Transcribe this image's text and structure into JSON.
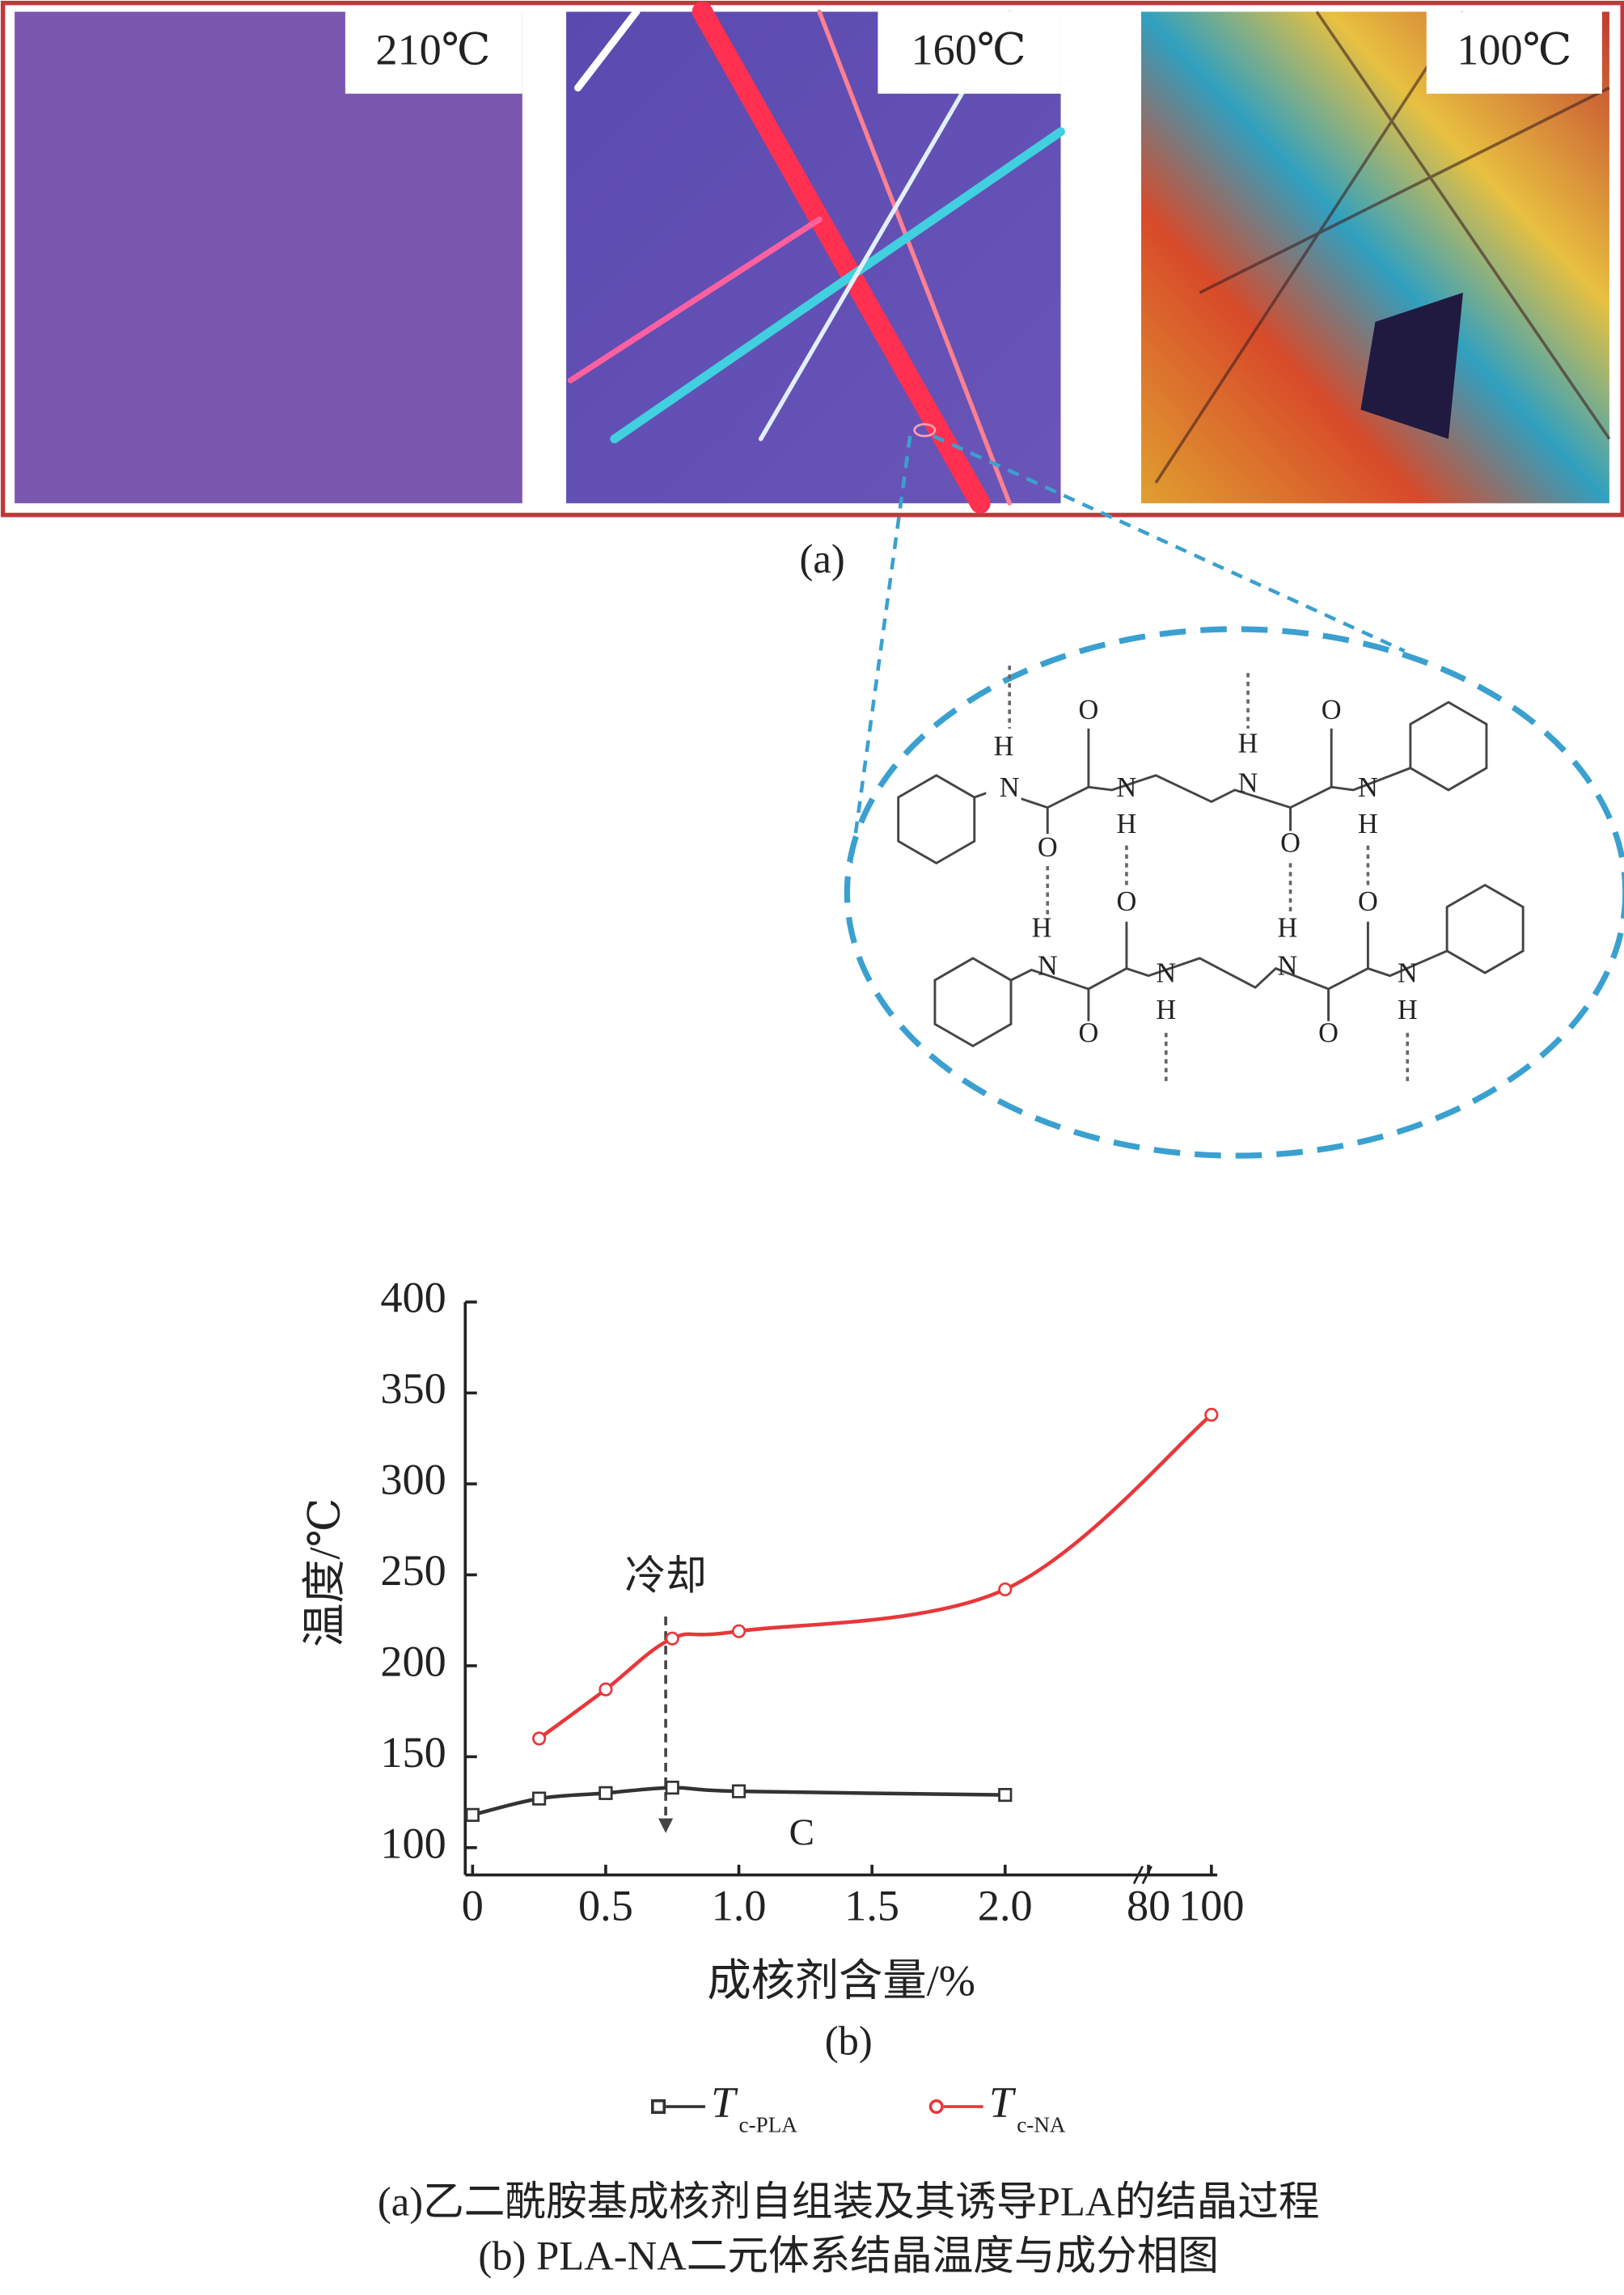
{
  "panel_a": {
    "labels": [
      "210℃",
      "160℃",
      "100℃"
    ],
    "caption": "(a)"
  },
  "structure": {
    "atoms": [
      "H",
      "N",
      "O",
      "O",
      "N",
      "H",
      "H",
      "N",
      "O",
      "O",
      "N",
      "H",
      "H",
      "N",
      "O",
      "O",
      "N",
      "H",
      "H",
      "N",
      "O",
      "O",
      "N",
      "H"
    ]
  },
  "chart_data": {
    "type": "line",
    "xlabel": "成核剂含量/%",
    "ylabel": "温度/℃",
    "caption": "(b)",
    "xlim": [
      0,
      100
    ],
    "xbreak": [
      2,
      80
    ],
    "xticks": [
      0,
      0.5,
      {
        "value": 1,
        "label": "1.0"
      },
      1.5,
      {
        "value": 2,
        "label": "2.0"
      },
      80,
      100
    ],
    "ylim": [
      85,
      400
    ],
    "yticks": [
      100,
      150,
      200,
      250,
      300,
      350,
      400
    ],
    "annotations": [
      "冷却",
      "C"
    ],
    "series": [
      {
        "name": "T",
        "subscript": "c-PLA",
        "color": "#333333",
        "marker": "square",
        "x": [
          0,
          0.25,
          0.5,
          0.75,
          1,
          2
        ],
        "values": [
          118,
          127,
          130,
          133,
          131,
          129
        ]
      },
      {
        "name": "T",
        "subscript": "c-NA",
        "color": "#e8373a",
        "marker": "circle",
        "x": [
          0.25,
          0.5,
          0.75,
          1,
          2,
          100
        ],
        "values": [
          160,
          187,
          215,
          219,
          242,
          338
        ]
      }
    ]
  },
  "caption": [
    "(a)乙二酰胺基成核剂自组装及其诱导PLA的结晶过程",
    "(b) PLA-NA二元体系结晶温度与成分相图"
  ]
}
